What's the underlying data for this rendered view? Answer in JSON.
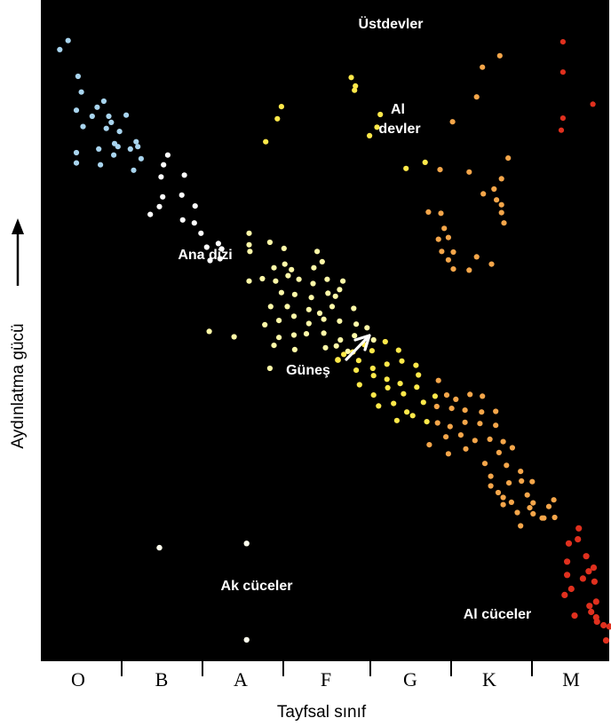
{
  "chart_data": {
    "type": "scatter",
    "title": "",
    "xlabel": "Tayfsal sınıf",
    "ylabel": "Aydınlatma gücü",
    "categories": [
      "O",
      "B",
      "A",
      "F",
      "G",
      "K",
      "M"
    ],
    "annotations": {
      "supergiants": "Üstdevler",
      "red_giants": "Al devler",
      "main_sequence": "Ana dizi",
      "sun": "Güneş",
      "white_dwarfs": "Ak cüceler",
      "red_dwarfs": "Al cüceler"
    },
    "colors": {
      "background": "#000000",
      "O": "#a8d4ee",
      "B": "#a8d4ee",
      "A": "#ffffff",
      "F": "#fffaa8",
      "G": "#ffe94a",
      "K": "#f5a64a",
      "M": "#e0301e"
    },
    "x_scale": "spectral class index (O=0 … M=6)",
    "y_scale": "relative brightness (higher = brighter)",
    "points": [
      [
        -0.2,
        96.2,
        "B"
      ],
      [
        -0.1,
        97.7,
        "B"
      ],
      [
        0.02,
        91.8,
        "B"
      ],
      [
        0.06,
        89.2,
        "B"
      ],
      [
        0.25,
        86.7,
        "B"
      ],
      [
        0.33,
        87.7,
        "B"
      ],
      [
        0.0,
        86.2,
        "B"
      ],
      [
        0.19,
        85.2,
        "B"
      ],
      [
        0.39,
        85.2,
        "B"
      ],
      [
        0.6,
        85.4,
        "B"
      ],
      [
        0.42,
        84.2,
        "B"
      ],
      [
        0.08,
        83.5,
        "B"
      ],
      [
        0.36,
        83.2,
        "B"
      ],
      [
        0.52,
        82.7,
        "B"
      ],
      [
        0.46,
        80.7,
        "B"
      ],
      [
        0.27,
        79.8,
        "B"
      ],
      [
        0.74,
        80.2,
        "B"
      ],
      [
        0.72,
        81.0,
        "B"
      ],
      [
        0.5,
        80.2,
        "B"
      ],
      [
        0.0,
        79.2,
        "B"
      ],
      [
        0.65,
        79.8,
        "B"
      ],
      [
        0.29,
        77.2,
        "B"
      ],
      [
        0.69,
        76.3,
        "B"
      ],
      [
        0.0,
        77.5,
        "B"
      ],
      [
        0.45,
        78.8,
        "B"
      ],
      [
        0.78,
        78.2,
        "B"
      ],
      [
        1.1,
        78.8,
        "A"
      ],
      [
        1.05,
        77.2,
        "A"
      ],
      [
        1.3,
        75.5,
        "A"
      ],
      [
        1.02,
        75.2,
        "A"
      ],
      [
        1.27,
        72.2,
        "A"
      ],
      [
        1.04,
        71.9,
        "A"
      ],
      [
        1.0,
        70.3,
        "A"
      ],
      [
        0.89,
        69.0,
        "A"
      ],
      [
        1.43,
        70.4,
        "A"
      ],
      [
        1.28,
        68.1,
        "A"
      ],
      [
        1.42,
        67.6,
        "A"
      ],
      [
        1.5,
        65.9,
        "A"
      ],
      [
        1.71,
        64.2,
        "A"
      ],
      [
        1.75,
        63.3,
        "A"
      ],
      [
        1.57,
        63.6,
        "A"
      ],
      [
        1.73,
        61.7,
        "A"
      ],
      [
        1.61,
        61.4,
        "A"
      ],
      [
        2.08,
        65.9,
        "F"
      ],
      [
        2.08,
        64.0,
        "F"
      ],
      [
        2.09,
        62.9,
        "F"
      ],
      [
        2.5,
        63.4,
        "F"
      ],
      [
        2.33,
        64.4,
        "F"
      ],
      [
        2.51,
        60.8,
        "F"
      ],
      [
        2.38,
        60.2,
        "F"
      ],
      [
        2.59,
        59.9,
        "F"
      ],
      [
        2.9,
        62.9,
        "F"
      ],
      [
        2.96,
        61.2,
        "F"
      ],
      [
        2.86,
        60.2,
        "F"
      ],
      [
        2.08,
        58.0,
        "F"
      ],
      [
        2.24,
        58.4,
        "F"
      ],
      [
        2.4,
        58.0,
        "F"
      ],
      [
        2.55,
        58.9,
        "F"
      ],
      [
        2.68,
        58.3,
        "F"
      ],
      [
        2.85,
        57.6,
        "F"
      ],
      [
        3.02,
        58.3,
        "F"
      ],
      [
        3.21,
        58.0,
        "F"
      ],
      [
        2.47,
        56.1,
        "F"
      ],
      [
        2.63,
        55.8,
        "F"
      ],
      [
        2.83,
        55.3,
        "F"
      ],
      [
        3.03,
        56.0,
        "F"
      ],
      [
        3.12,
        55.5,
        "F"
      ],
      [
        3.17,
        56.6,
        "F"
      ],
      [
        2.34,
        53.8,
        "F"
      ],
      [
        2.54,
        53.8,
        "F"
      ],
      [
        2.8,
        53.3,
        "F"
      ],
      [
        2.93,
        52.7,
        "F"
      ],
      [
        3.08,
        53.8,
        "F"
      ],
      [
        3.34,
        53.5,
        "F"
      ],
      [
        2.27,
        50.8,
        "F"
      ],
      [
        2.44,
        51.5,
        "F"
      ],
      [
        2.62,
        52.2,
        "F"
      ],
      [
        2.8,
        51.0,
        "F"
      ],
      [
        2.98,
        51.7,
        "F"
      ],
      [
        3.17,
        51.4,
        "F"
      ],
      [
        3.37,
        50.9,
        "F"
      ],
      [
        2.44,
        48.7,
        "F"
      ],
      [
        2.62,
        49.1,
        "F"
      ],
      [
        2.77,
        49.3,
        "F"
      ],
      [
        2.98,
        49.4,
        "F"
      ],
      [
        3.18,
        48.3,
        "F"
      ],
      [
        3.35,
        49.0,
        "F"
      ],
      [
        3.5,
        50.3,
        "F"
      ],
      [
        3.58,
        48.3,
        "F"
      ],
      [
        2.38,
        47.4,
        "F"
      ],
      [
        2.63,
        46.7,
        "F"
      ],
      [
        3.0,
        47.0,
        "F"
      ],
      [
        3.13,
        47.3,
        "F"
      ],
      [
        3.27,
        46.4,
        "F"
      ],
      [
        2.33,
        43.6,
        "F"
      ],
      [
        1.9,
        48.8,
        "F"
      ],
      [
        1.6,
        49.7,
        "F"
      ],
      [
        3.33,
        46.3,
        "G"
      ],
      [
        3.47,
        47.5,
        "G"
      ],
      [
        3.56,
        46.5,
        "G"
      ],
      [
        3.72,
        48.0,
        "G"
      ],
      [
        3.88,
        46.6,
        "G"
      ],
      [
        3.22,
        45.9,
        "G"
      ],
      [
        3.4,
        44.9,
        "G"
      ],
      [
        3.57,
        43.6,
        "G"
      ],
      [
        3.74,
        44.3,
        "G"
      ],
      [
        3.92,
        44.8,
        "G"
      ],
      [
        4.09,
        44.1,
        "G"
      ],
      [
        3.37,
        43.3,
        "G"
      ],
      [
        3.58,
        42.4,
        "G"
      ],
      [
        3.74,
        41.8,
        "G"
      ],
      [
        3.9,
        41.1,
        "G"
      ],
      [
        4.12,
        42.5,
        "G"
      ],
      [
        3.41,
        40.9,
        "G"
      ],
      [
        3.58,
        39.2,
        "G"
      ],
      [
        3.75,
        40.4,
        "G"
      ],
      [
        3.94,
        39.4,
        "G"
      ],
      [
        4.1,
        40.5,
        "G"
      ],
      [
        3.64,
        37.4,
        "G"
      ],
      [
        3.82,
        37.8,
        "G"
      ],
      [
        3.98,
        36.4,
        "G"
      ],
      [
        4.18,
        38.0,
        "G"
      ],
      [
        4.32,
        39.0,
        "G"
      ],
      [
        3.86,
        35.0,
        "G"
      ],
      [
        4.05,
        35.8,
        "G"
      ],
      [
        4.22,
        34.8,
        "G"
      ],
      [
        3.66,
        85.5,
        "G"
      ],
      [
        3.35,
        89.5,
        "G"
      ],
      [
        3.31,
        91.6,
        "G"
      ],
      [
        2.47,
        86.8,
        "G"
      ],
      [
        2.42,
        84.8,
        "G"
      ],
      [
        2.28,
        81.0,
        "G"
      ],
      [
        3.62,
        83.4,
        "G"
      ],
      [
        3.97,
        76.6,
        "G"
      ],
      [
        4.2,
        77.6,
        "G"
      ],
      [
        3.53,
        82.0,
        "G"
      ],
      [
        3.36,
        90.2,
        "G"
      ],
      [
        4.36,
        41.6,
        "K"
      ],
      [
        4.46,
        39.2,
        "K"
      ],
      [
        4.57,
        38.5,
        "K"
      ],
      [
        4.74,
        39.3,
        "K"
      ],
      [
        4.89,
        39.0,
        "K"
      ],
      [
        4.34,
        37.3,
        "K"
      ],
      [
        4.52,
        37.0,
        "K"
      ],
      [
        4.68,
        36.7,
        "K"
      ],
      [
        4.88,
        36.4,
        "K"
      ],
      [
        5.05,
        36.5,
        "K"
      ],
      [
        4.35,
        34.6,
        "K"
      ],
      [
        4.5,
        34.0,
        "K"
      ],
      [
        4.68,
        34.7,
        "K"
      ],
      [
        4.86,
        34.5,
        "K"
      ],
      [
        5.05,
        34.2,
        "K"
      ],
      [
        4.45,
        32.3,
        "K"
      ],
      [
        4.63,
        32.6,
        "K"
      ],
      [
        4.8,
        31.7,
        "K"
      ],
      [
        4.98,
        31.9,
        "K"
      ],
      [
        5.14,
        31.5,
        "K"
      ],
      [
        4.25,
        31.0,
        "K"
      ],
      [
        4.48,
        29.5,
        "K"
      ],
      [
        4.69,
        30.3,
        "K"
      ],
      [
        5.09,
        29.7,
        "K"
      ],
      [
        5.25,
        30.5,
        "K"
      ],
      [
        4.92,
        27.9,
        "K"
      ],
      [
        5.18,
        27.6,
        "K"
      ],
      [
        5.35,
        26.6,
        "K"
      ],
      [
        4.99,
        25.8,
        "K"
      ],
      [
        5.21,
        24.7,
        "K"
      ],
      [
        4.99,
        24.2,
        "K"
      ],
      [
        5.08,
        23.1,
        "K"
      ],
      [
        5.14,
        22.3,
        "K"
      ],
      [
        5.36,
        25.0,
        "K"
      ],
      [
        5.49,
        24.9,
        "K"
      ],
      [
        5.43,
        22.7,
        "K"
      ],
      [
        5.24,
        21.5,
        "K"
      ],
      [
        5.5,
        21.4,
        "K"
      ],
      [
        5.69,
        20.8,
        "K"
      ],
      [
        5.75,
        21.9,
        "K"
      ],
      [
        5.61,
        18.9,
        "K"
      ],
      [
        5.46,
        20.6,
        "K"
      ],
      [
        5.14,
        21.1,
        "K"
      ],
      [
        5.63,
        18.9,
        "K"
      ],
      [
        5.76,
        19.0,
        "K"
      ],
      [
        5.31,
        19.8,
        "K"
      ],
      [
        5.5,
        19.6,
        "K"
      ],
      [
        5.35,
        17.6,
        "K"
      ],
      [
        5.2,
        78.3,
        "K"
      ],
      [
        5.12,
        74.9,
        "K"
      ],
      [
        5.03,
        73.2,
        "K"
      ],
      [
        5.06,
        71.4,
        "K"
      ],
      [
        4.9,
        72.4,
        "K"
      ],
      [
        5.12,
        70.6,
        "K"
      ],
      [
        5.15,
        67.6,
        "K"
      ],
      [
        5.12,
        69.3,
        "K"
      ],
      [
        4.73,
        76.0,
        "K"
      ],
      [
        4.39,
        69.2,
        "K"
      ],
      [
        4.24,
        69.4,
        "K"
      ],
      [
        4.43,
        66.7,
        "K"
      ],
      [
        4.48,
        65.2,
        "K"
      ],
      [
        4.36,
        64.9,
        "K"
      ],
      [
        4.4,
        62.9,
        "K"
      ],
      [
        4.54,
        62.8,
        "K"
      ],
      [
        4.54,
        60.0,
        "K"
      ],
      [
        4.48,
        61.5,
        "K"
      ],
      [
        4.73,
        59.8,
        "K"
      ],
      [
        4.82,
        62.0,
        "K"
      ],
      [
        5.0,
        60.8,
        "K"
      ],
      [
        4.38,
        76.4,
        "K"
      ],
      [
        4.53,
        84.3,
        "K"
      ],
      [
        4.89,
        93.3,
        "K"
      ],
      [
        4.82,
        88.4,
        "K"
      ],
      [
        5.1,
        95.2,
        "K"
      ],
      [
        5.86,
        97.5,
        "M"
      ],
      [
        5.86,
        92.5,
        "M"
      ],
      [
        6.22,
        87.2,
        "M"
      ],
      [
        5.86,
        84.9,
        "M"
      ],
      [
        5.84,
        82.9,
        "M"
      ],
      [
        6.05,
        17.2,
        "M"
      ],
      [
        6.04,
        15.4,
        "M"
      ],
      [
        5.93,
        14.7,
        "M"
      ],
      [
        6.14,
        12.6,
        "M"
      ],
      [
        5.91,
        11.7,
        "M"
      ],
      [
        6.23,
        10.7,
        "M"
      ],
      [
        6.17,
        10.1,
        "M"
      ],
      [
        5.91,
        9.5,
        "M"
      ],
      [
        6.24,
        8.4,
        "M"
      ],
      [
        6.26,
        5.1,
        "M"
      ],
      [
        6.18,
        4.4,
        "M"
      ],
      [
        6.26,
        2.5,
        "M"
      ],
      [
        6.27,
        1.8,
        "M"
      ],
      [
        6.1,
        8.9,
        "M"
      ],
      [
        5.96,
        7.2,
        "M"
      ],
      [
        5.88,
        6.2,
        "M"
      ],
      [
        6.2,
        3.4,
        "M"
      ],
      [
        6.0,
        2.8,
        "M"
      ],
      [
        6.35,
        1.2,
        "M"
      ],
      [
        6.42,
        1.0,
        "M"
      ],
      [
        6.5,
        0.0,
        "M"
      ],
      [
        6.38,
        -1.3,
        "M"
      ],
      [
        6.55,
        -2.0,
        "M"
      ],
      [
        6.58,
        -3.8,
        "M"
      ]
    ],
    "white_dwarfs": [
      [
        1.0,
        14.0
      ],
      [
        2.05,
        14.7
      ],
      [
        2.05,
        -1.2
      ]
    ],
    "sun": [
      3.15,
      45.0
    ]
  }
}
